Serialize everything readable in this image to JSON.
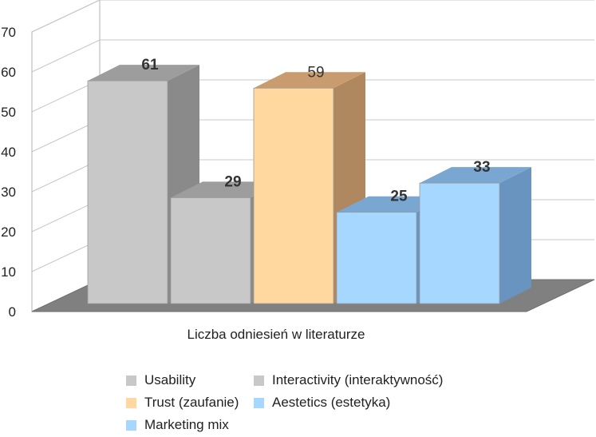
{
  "chart_data": {
    "type": "bar",
    "three_d": true,
    "categories": [
      "Liczba odniesień w literaturze"
    ],
    "series": [
      {
        "name": "Usability",
        "values": [
          61
        ],
        "color": "#c8c8c8",
        "side_color": "#8a8a8a",
        "top_color": "#9d9d9d",
        "label_bold": true
      },
      {
        "name": "Interactivity (interaktywność)",
        "values": [
          29
        ],
        "color": "#c8c8c8",
        "side_color": "#8a8a8a",
        "top_color": "#9d9d9d",
        "label_bold": true
      },
      {
        "name": "Trust (zaufanie)",
        "values": [
          59
        ],
        "color": "#ffd8a0",
        "side_color": "#b08860",
        "top_color": "#c89c6e",
        "label_bold": false
      },
      {
        "name": "Aestetics (estetyka)",
        "values": [
          25
        ],
        "color": "#a6d8ff",
        "side_color": "#6a94c0",
        "top_color": "#7aa6d2",
        "label_bold": true
      },
      {
        "name": "Marketing mix",
        "values": [
          33
        ],
        "color": "#a6d8ff",
        "side_color": "#6a94c0",
        "top_color": "#7aa6d2",
        "label_bold": true
      }
    ],
    "yticks": [
      "0",
      "10",
      "20",
      "30",
      "40",
      "50",
      "60",
      "70"
    ],
    "ylim": [
      0,
      70
    ],
    "grid": true,
    "legend_position": "bottom"
  }
}
